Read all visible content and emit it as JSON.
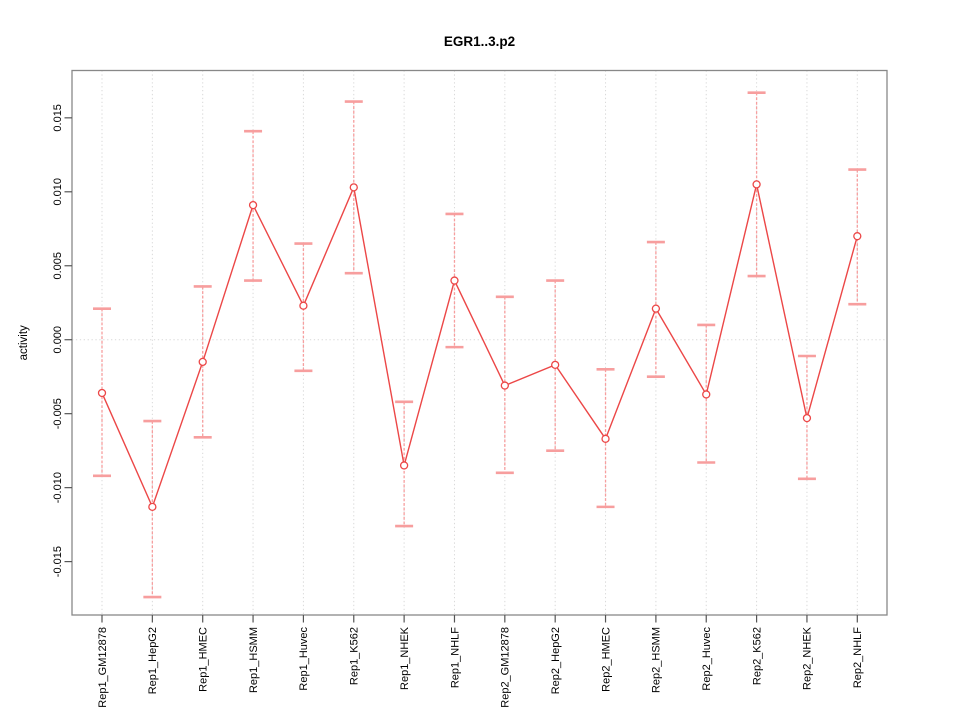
{
  "chart_data": {
    "type": "line",
    "title": "EGR1..3.p2",
    "xlabel": "",
    "ylabel": "activity",
    "legend": "none",
    "grid": "vertical dotted gridline at every category; horizontal dotted gridline at y=0 only",
    "categories": [
      "Rep1_GM12878",
      "Rep1_HepG2",
      "Rep1_HMEC",
      "Rep1_HSMM",
      "Rep1_Huvec",
      "Rep1_K562",
      "Rep1_NHEK",
      "Rep1_NHLF",
      "Rep2_GM12878",
      "Rep2_HepG2",
      "Rep2_HMEC",
      "Rep2_HSMM",
      "Rep2_Huvec",
      "Rep2_K562",
      "Rep2_NHEK",
      "Rep2_NHLF"
    ],
    "series": [
      {
        "name": "activity",
        "marker": "open-circle",
        "values": [
          -0.0036,
          -0.0113,
          -0.0015,
          0.0091,
          0.0023,
          0.0103,
          -0.0085,
          0.004,
          -0.0031,
          -0.0017,
          -0.0067,
          0.0021,
          -0.0037,
          0.0105,
          -0.0053,
          0.007
        ],
        "error_upper": [
          0.0021,
          -0.0055,
          0.0036,
          0.0141,
          0.0065,
          0.0161,
          -0.0042,
          0.0085,
          0.0029,
          0.004,
          -0.002,
          0.0066,
          0.001,
          0.0167,
          -0.0011,
          0.0115
        ],
        "error_lower": [
          -0.0092,
          -0.0174,
          -0.0066,
          0.004,
          -0.0021,
          0.0045,
          -0.0126,
          -0.0005,
          -0.009,
          -0.0075,
          -0.0113,
          -0.0025,
          -0.0083,
          0.0043,
          -0.0094,
          0.0024
        ]
      }
    ],
    "yticks": [
      0.015,
      0.01,
      0.005,
      0.0,
      -0.005,
      -0.01,
      -0.015
    ],
    "ytick_labels": [
      "0.015",
      "0.010",
      "0.005",
      "0.000",
      "-0.005",
      "-0.010",
      "-0.015"
    ],
    "ylim": [
      -0.01861,
      0.0182
    ],
    "colors": {
      "line": "#ec4747",
      "errorbar": "#f79e9e",
      "grid": "#d9d9d9",
      "box": "#888888",
      "tick": "#555555",
      "text": "#000000",
      "background": "#ffffff"
    }
  }
}
